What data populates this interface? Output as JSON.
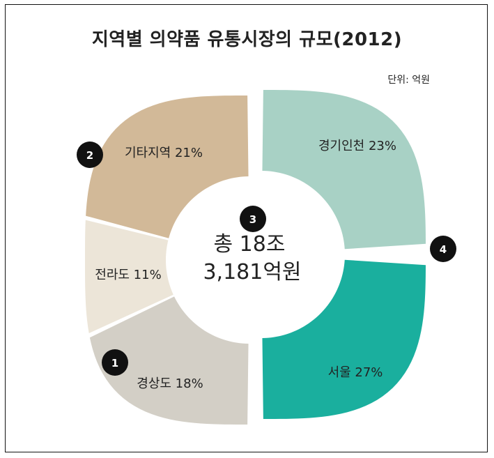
{
  "chart_data": {
    "type": "pie",
    "title": "지역별 의약품 유통시장의 규모(2012)",
    "unit_label": "단위: 억원",
    "center_label": {
      "line1": "총 18조",
      "line2": "3,181억원"
    },
    "slices": [
      {
        "label": "경기인천 23%",
        "value": 23,
        "color": "#a8d1c5"
      },
      {
        "label": "서울 27%",
        "value": 27,
        "color": "#1aaf9e"
      },
      {
        "label": "경상도 18%",
        "value": 18,
        "color": "#d3cfc6"
      },
      {
        "label": "전라도 11%",
        "value": 11,
        "color": "#ece5d8"
      },
      {
        "label": "기타지역 21%",
        "value": 21,
        "color": "#d2b998"
      }
    ],
    "badges": [
      {
        "label": "1"
      },
      {
        "label": "2"
      },
      {
        "label": "3"
      },
      {
        "label": "4"
      }
    ]
  }
}
